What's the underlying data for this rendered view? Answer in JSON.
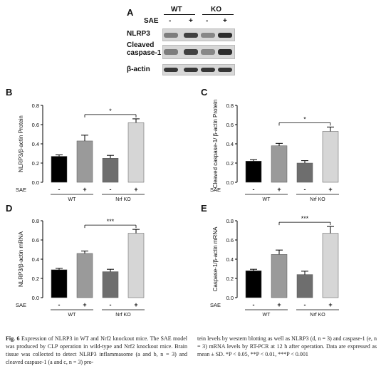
{
  "panelA": {
    "letter": "A",
    "group_labels": [
      "WT",
      "KO"
    ],
    "sae_label": "SAE",
    "sae_signs": [
      "-",
      "+",
      "-",
      "+"
    ],
    "rows": [
      {
        "label_lines": [
          "NLRP3"
        ],
        "intensities": [
          0.55,
          0.85,
          0.5,
          0.95
        ]
      },
      {
        "label_lines": [
          "Cleaved",
          "caspase-1"
        ],
        "intensities": [
          0.55,
          0.85,
          0.5,
          0.95
        ]
      },
      {
        "label_lines": [
          "β-actin"
        ],
        "intensities": [
          0.9,
          0.9,
          0.9,
          0.9
        ]
      }
    ]
  },
  "chart_data": [
    {
      "panel": "B",
      "type": "bar",
      "ylabel": "NLRP3/β-actin Protein",
      "ylim": [
        0,
        0.8
      ],
      "yticks": [
        "0.0",
        "0.2",
        "0.4",
        "0.6",
        "0.8"
      ],
      "sae_label": "SAE",
      "sae_signs": [
        "-",
        "+",
        "-",
        "+"
      ],
      "group_labels": [
        "WT",
        "Nrf  KO"
      ],
      "values": [
        0.27,
        0.43,
        0.25,
        0.62
      ],
      "errors": [
        0.015,
        0.06,
        0.03,
        0.04
      ],
      "colors": [
        "#000000",
        "#9a9a9a",
        "#6e6e6e",
        "#d6d6d6"
      ],
      "significance": {
        "from": 1,
        "to": 3,
        "label": "*"
      }
    },
    {
      "panel": "C",
      "type": "bar",
      "ylabel": "Cleaved caspase-1/ β-actin Protein",
      "ylim": [
        0,
        0.8
      ],
      "yticks": [
        "0.0",
        "0.2",
        "0.4",
        "0.6",
        "0.8"
      ],
      "sae_label": "SAE",
      "sae_signs": [
        "-",
        "+",
        "-",
        "+"
      ],
      "group_labels": [
        "WT",
        "Nrf  KO"
      ],
      "values": [
        0.22,
        0.38,
        0.2,
        0.53
      ],
      "errors": [
        0.015,
        0.025,
        0.025,
        0.045
      ],
      "colors": [
        "#000000",
        "#9a9a9a",
        "#6e6e6e",
        "#d6d6d6"
      ],
      "significance": {
        "from": 1,
        "to": 3,
        "label": "*"
      }
    },
    {
      "panel": "D",
      "type": "bar",
      "ylabel": "NLRP3/β-actin mRNA",
      "ylim": [
        0,
        0.8
      ],
      "yticks": [
        "0.0",
        "0.2",
        "0.4",
        "0.6",
        "0.8"
      ],
      "sae_label": "SAE",
      "sae_signs": [
        "-",
        "+",
        "-",
        "+"
      ],
      "group_labels": [
        "WT",
        "Nrf  KO"
      ],
      "values": [
        0.29,
        0.46,
        0.27,
        0.67
      ],
      "errors": [
        0.015,
        0.025,
        0.025,
        0.04
      ],
      "colors": [
        "#000000",
        "#9a9a9a",
        "#6e6e6e",
        "#d6d6d6"
      ],
      "significance": {
        "from": 1,
        "to": 3,
        "label": "***"
      }
    },
    {
      "panel": "E",
      "type": "bar",
      "ylabel": "Caspase-1/β-actin mRNA",
      "ylim": [
        0,
        0.8
      ],
      "yticks": [
        "0.0",
        "0.2",
        "0.4",
        "0.6",
        "0.8"
      ],
      "sae_label": "SAE",
      "sae_signs": [
        "-",
        "+",
        "-",
        "+"
      ],
      "group_labels": [
        "WT",
        "Nrf  KO"
      ],
      "values": [
        0.28,
        0.45,
        0.24,
        0.67
      ],
      "errors": [
        0.015,
        0.045,
        0.035,
        0.07
      ],
      "colors": [
        "#000000",
        "#9a9a9a",
        "#6e6e6e",
        "#d6d6d6"
      ],
      "significance": {
        "from": 1,
        "to": 3,
        "label": "***"
      }
    }
  ],
  "caption": {
    "fig_label": "Fig. 6",
    "left_text": "Expression of NLRP3 in WT and Nrf2 knockout mice. The SAE model was produced by CLP operation in wild-type and Nrf2 knockout mice. Brain tissue was collected to detect NLRP3 inflammasome (a and b, n = 3) and cleaved caspase-1 (a and c, n = 3) pro-",
    "right_text": "tein levels by western blotting as well as NLRP3 (d, n = 3) and caspase-1 (e, n = 3) mRNA levels by RT-PCR at 12 h after operation. Data are expressed as mean ± SD. *P < 0.05, **P < 0.01, ***P < 0.001"
  }
}
